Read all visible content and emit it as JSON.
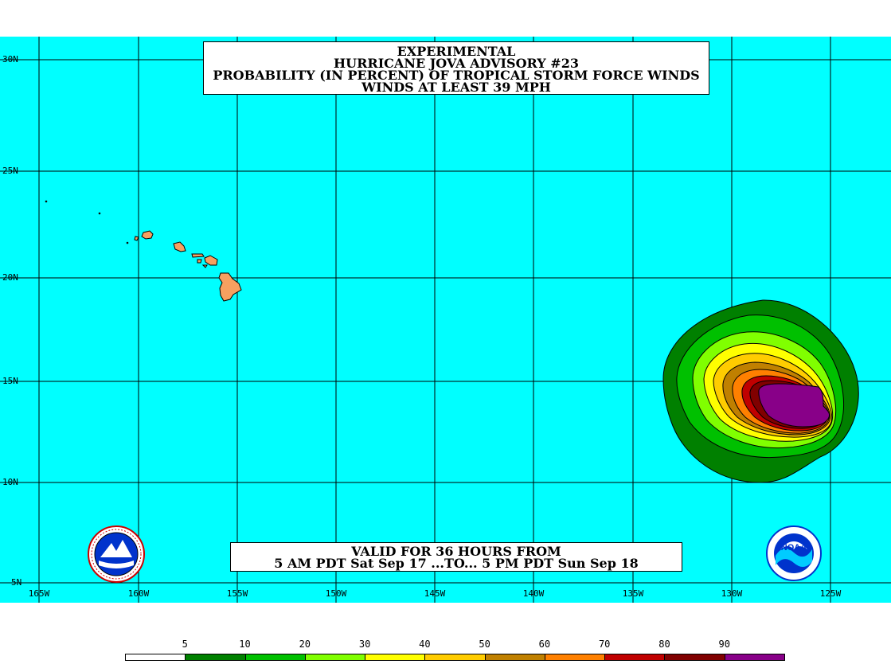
{
  "title": {
    "lines": [
      "EXPERIMENTAL",
      "HURRICANE JOVA ADVISORY #23",
      "PROBABILITY (IN PERCENT) OF TROPICAL STORM FORCE WINDS",
      "WINDS AT LEAST 39 MPH"
    ]
  },
  "valid": {
    "lines": [
      "VALID FOR 36 HOURS FROM",
      "5 AM PDT Sat Sep 17 ...TO... 5 PM PDT Sun Sep 18"
    ]
  },
  "map": {
    "ocean_color": "#00ffff",
    "land_color": "#f7a060",
    "lat_labels": [
      "30N",
      "25N",
      "20N",
      "15N",
      "10N",
      "5N"
    ],
    "lon_labels": [
      "165W",
      "160W",
      "155W",
      "150W",
      "145W",
      "140W",
      "135W",
      "130W",
      "125W"
    ]
  },
  "legend": {
    "labels": [
      "5",
      "10",
      "20",
      "30",
      "40",
      "50",
      "60",
      "70",
      "80",
      "90"
    ],
    "colors": [
      "#ffffff",
      "#008000",
      "#00c000",
      "#80ff00",
      "#ffff00",
      "#ffcc00",
      "#c08000",
      "#ff8000",
      "#c00000",
      "#800000",
      "#880088"
    ]
  },
  "logos": {
    "left": "nws-logo-icon",
    "right": "noaa-logo-icon",
    "right_text": "NOAA"
  }
}
